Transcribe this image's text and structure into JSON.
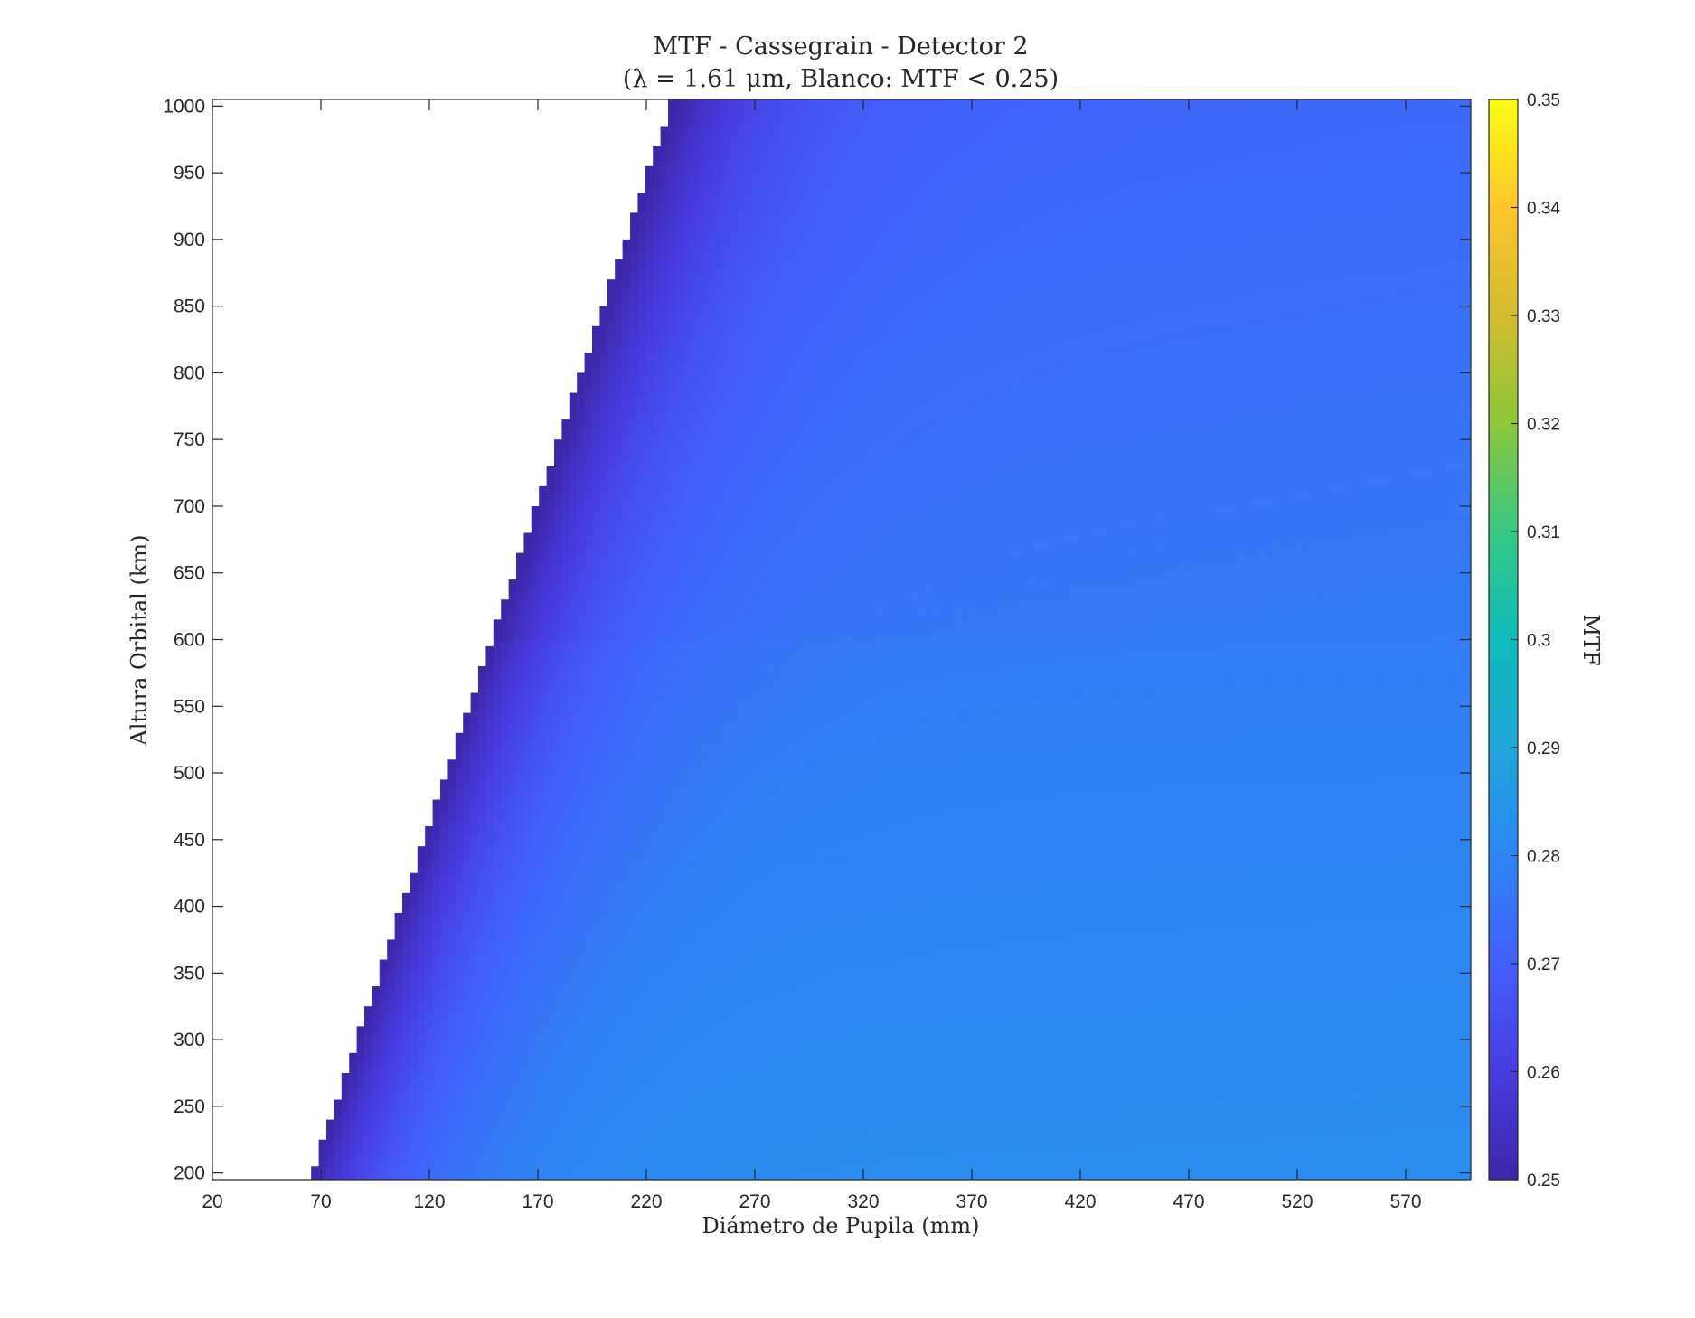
{
  "chart_data": {
    "type": "heatmap",
    "title": "MTF - Cassegrain - Detector 2",
    "subtitle": "(λ = 1.61 μm, Blanco: MTF < 0.25)",
    "xlabel": "Diámetro de Pupila (mm)",
    "ylabel": "Altura Orbital (km)",
    "xlim": [
      20,
      600
    ],
    "ylim": [
      195,
      1005
    ],
    "x_ticks": [
      "20",
      "70",
      "120",
      "170",
      "220",
      "270",
      "320",
      "370",
      "420",
      "470",
      "520",
      "570"
    ],
    "y_ticks": [
      "200",
      "250",
      "300",
      "350",
      "400",
      "450",
      "500",
      "550",
      "600",
      "650",
      "700",
      "750",
      "800",
      "850",
      "900",
      "950",
      "1000"
    ],
    "x_tick_values": [
      20,
      70,
      120,
      170,
      220,
      270,
      320,
      370,
      420,
      470,
      520,
      570
    ],
    "y_tick_values": [
      200,
      250,
      300,
      350,
      400,
      450,
      500,
      550,
      600,
      650,
      700,
      750,
      800,
      850,
      900,
      950,
      1000
    ],
    "colorbar": {
      "label": "MTF",
      "range": [
        0.25,
        0.35
      ],
      "colormap": "parula",
      "ticks": [
        "0.25",
        "0.26",
        "0.27",
        "0.28",
        "0.29",
        "0.3",
        "0.31",
        "0.32",
        "0.33",
        "0.34",
        "0.35"
      ],
      "tick_values": [
        0.25,
        0.26,
        0.27,
        0.28,
        0.29,
        0.3,
        0.31,
        0.32,
        0.33,
        0.34,
        0.35
      ]
    },
    "threshold": 0.25,
    "threshold_color": "#ffffff",
    "boundary": {
      "altitude_km": [
        200,
        400,
        600,
        800,
        1000
      ],
      "diameter_mm": [
        66,
        107,
        149,
        190,
        231
      ]
    },
    "samples": [
      {
        "diameter_mm": 70,
        "altitude_km": 210,
        "mtf": 0.262
      },
      {
        "diameter_mm": 240,
        "altitude_km": 990,
        "mtf": 0.255
      },
      {
        "diameter_mm": 230,
        "altitude_km": 500,
        "mtf": 0.269
      },
      {
        "diameter_mm": 600,
        "altitude_km": 1000,
        "mtf": 0.272
      },
      {
        "diameter_mm": 600,
        "altitude_km": 200,
        "mtf": 0.282
      },
      {
        "diameter_mm": 600,
        "altitude_km": 500,
        "mtf": 0.279
      }
    ],
    "grid": false
  }
}
